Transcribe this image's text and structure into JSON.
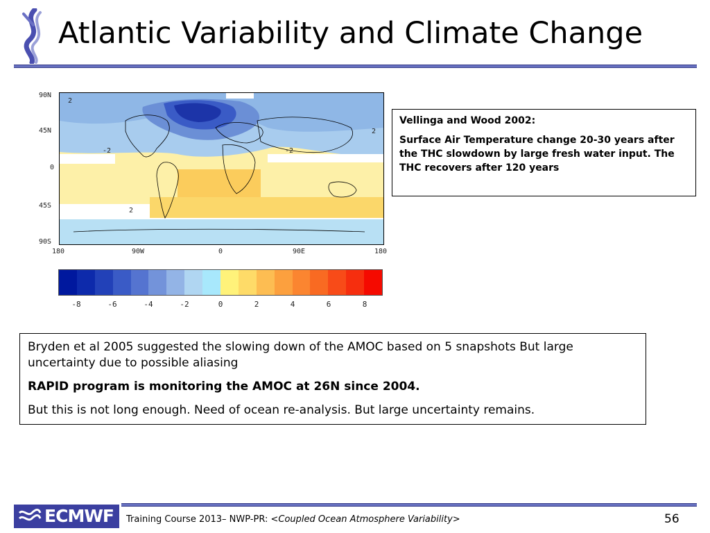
{
  "slide": {
    "title": "Atlantic Variability and Climate Change",
    "page_number": "56"
  },
  "map": {
    "lat_labels": [
      "90N",
      "45N",
      "0",
      "45S",
      "90S"
    ],
    "lon_labels": [
      "180",
      "90W",
      "0",
      "90E",
      "180"
    ],
    "contour_labels": [
      "2",
      "2",
      "-2",
      "-2",
      "2"
    ],
    "colorbar": {
      "colors": [
        "#00189e",
        "#0d2aab",
        "#2241b8",
        "#3a5bc6",
        "#5574d0",
        "#7393da",
        "#93b4e6",
        "#b0d6f2",
        "#a8e8fc",
        "#fff27a",
        "#fedb68",
        "#fdbd52",
        "#fca03e",
        "#fb8530",
        "#f96a22",
        "#f84b18",
        "#f62e0e",
        "#f50a00"
      ],
      "tick_labels": [
        "-8",
        "-6",
        "-4",
        "-2",
        "0",
        "2",
        "4",
        "6",
        "8"
      ]
    }
  },
  "box1": {
    "heading": "Vellinga and Wood 2002:",
    "text": "Surface Air Temperature change 20-30 years after the THC slowdown by large fresh water input. The THC recovers after 120 years"
  },
  "box2": {
    "para1": "Bryden et al 2005 suggested the slowing down of the AMOC based on 5 snapshots But large uncertainty due to possible aliasing",
    "para2": "RAPID program is monitoring the AMOC at 26N since 2004.",
    "para3": "But this is not long enough. Need of ocean re-analysis. But large uncertainty remains."
  },
  "footer": {
    "logo_text": "ECMWF",
    "prefix": "Training Course 2013– NWP-PR: <",
    "topic": "Coupled Ocean Atmosphere Variability",
    "suffix": ">"
  },
  "colors": {
    "accent_rule": "#6670c0",
    "logo_bg": "#3b3fa0"
  }
}
